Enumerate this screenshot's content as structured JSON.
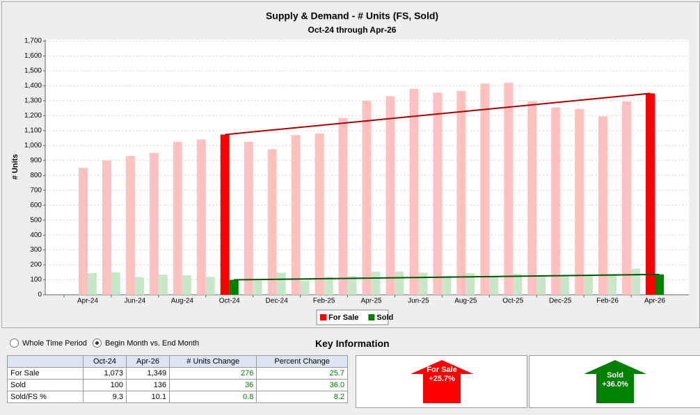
{
  "chart_data": {
    "type": "bar",
    "title": "Supply & Demand - # Units (FS, Sold)",
    "subtitle": "Oct-24 through Apr-26",
    "y_label": "# Units",
    "categories": [
      "Apr-24",
      null,
      "Jun-24",
      null,
      "Aug-24",
      null,
      "Oct-24",
      null,
      "Dec-24",
      null,
      "Feb-25",
      null,
      "Apr-25",
      null,
      "Jun-25",
      null,
      "Aug-25",
      null,
      "Oct-25",
      null,
      "Dec-25",
      null,
      "Feb-26",
      null,
      "Apr-26"
    ],
    "series": [
      {
        "name": "For Sale",
        "color": "#ff0000",
        "faded_color": "#ffc0c0",
        "trend_color": "#aa0000",
        "values": [
          850,
          900,
          930,
          950,
          1025,
          1040,
          1073,
          1025,
          975,
          1070,
          1080,
          1185,
          1300,
          1330,
          1380,
          1355,
          1365,
          1415,
          1420,
          1295,
          1255,
          1245,
          1195,
          1295,
          1349
        ]
      },
      {
        "name": "Sold",
        "color": "#008000",
        "faded_color": "#c8e6c8",
        "trend_color": "#005500",
        "values": [
          145,
          150,
          118,
          135,
          130,
          120,
          100,
          100,
          148,
          95,
          120,
          125,
          155,
          155,
          148,
          125,
          145,
          125,
          140,
          130,
          130,
          135,
          140,
          175,
          136
        ]
      }
    ],
    "ylim": [
      0,
      1700
    ],
    "yticks": [
      0,
      100,
      200,
      300,
      400,
      500,
      600,
      700,
      800,
      900,
      {
        "value": 1000,
        "label": "1,000"
      },
      {
        "value": 1100,
        "label": "1,100"
      },
      {
        "value": 1200,
        "label": "1,200"
      },
      {
        "value": 1300,
        "label": "1,300"
      },
      {
        "value": 1400,
        "label": "1,400"
      },
      {
        "value": 1500,
        "label": "1,500"
      },
      {
        "value": 1600,
        "label": "1,600"
      },
      {
        "value": 1700,
        "label": "1,700"
      }
    ],
    "grid": true
  },
  "controls": {
    "options": [
      "Whole Time Period",
      "Begin Month vs. End Month"
    ],
    "selected": 1
  },
  "key_title": "Key Information",
  "table": {
    "header": [
      "Oct-24",
      "Apr-26",
      "# Units Change",
      "Percent Change"
    ],
    "rows": [
      [
        "For Sale",
        "1,073",
        "1,349",
        "276",
        "25.7"
      ],
      [
        "Sold",
        "100",
        "136",
        "36",
        "36.0"
      ],
      [
        "Sold/FS %",
        "9.3",
        "10.1",
        "0.8",
        "8.2"
      ]
    ]
  },
  "indicators": [
    {
      "label": "For Sale",
      "value": "+25.7%",
      "color": "#ff0000"
    },
    {
      "label": "Sold",
      "value": "+36.0%",
      "color": "#008000"
    }
  ]
}
